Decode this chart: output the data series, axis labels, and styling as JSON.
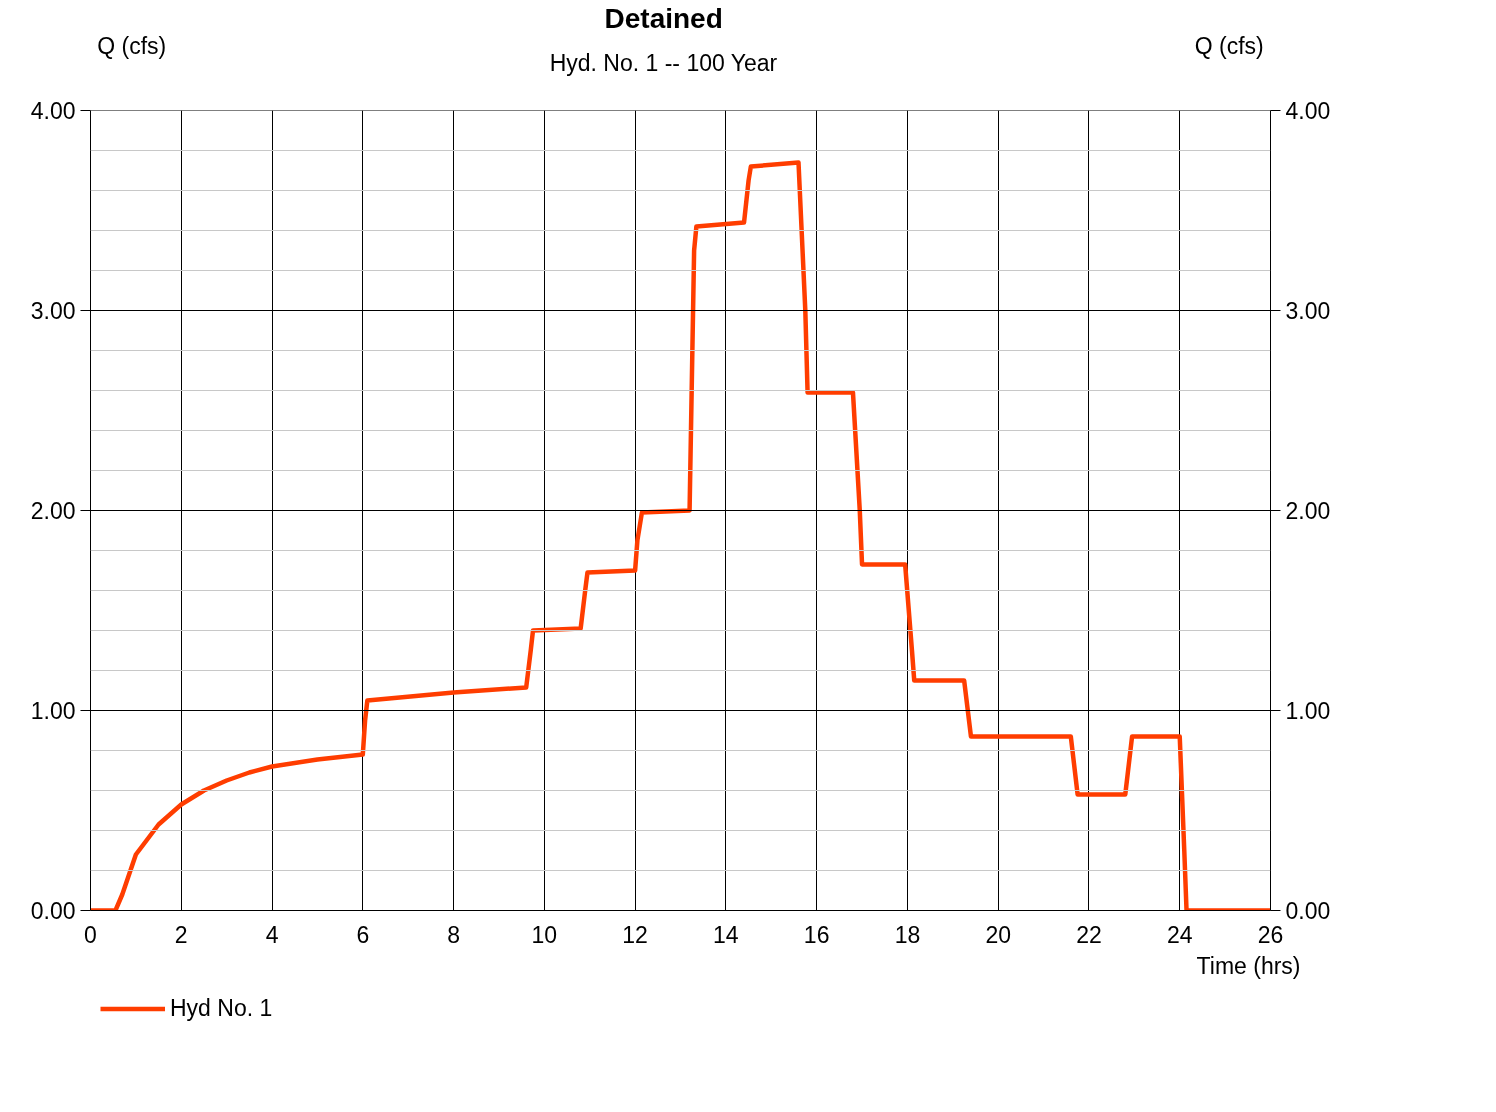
{
  "chart_data": {
    "type": "line",
    "title": "Detained",
    "subtitle": "Hyd. No. 1 -- 100 Year",
    "xlabel": "Time (hrs)",
    "ylabel": "Q (cfs)",
    "y2label": "Q (cfs)",
    "xlim": [
      0,
      26
    ],
    "ylim": [
      0,
      4
    ],
    "y2lim": [
      0,
      4
    ],
    "xticks": [
      0,
      2,
      4,
      6,
      8,
      10,
      12,
      14,
      16,
      18,
      20,
      22,
      24,
      26
    ],
    "yticks": [
      {
        "value": 0,
        "label": "0.00"
      },
      {
        "value": 0.2,
        "label": null
      },
      {
        "value": 0.4,
        "label": null
      },
      {
        "value": 0.6,
        "label": null
      },
      {
        "value": 0.8,
        "label": null
      },
      {
        "value": 1,
        "label": "1.00"
      },
      {
        "value": 1.2,
        "label": null
      },
      {
        "value": 1.4,
        "label": null
      },
      {
        "value": 1.6,
        "label": null
      },
      {
        "value": 1.8,
        "label": null
      },
      {
        "value": 2,
        "label": "2.00"
      },
      {
        "value": 2.2,
        "label": null
      },
      {
        "value": 2.4,
        "label": null
      },
      {
        "value": 2.6,
        "label": null
      },
      {
        "value": 2.8,
        "label": null
      },
      {
        "value": 3,
        "label": "3.00"
      },
      {
        "value": 3.2,
        "label": null
      },
      {
        "value": 3.4,
        "label": null
      },
      {
        "value": 3.6,
        "label": null
      },
      {
        "value": 3.8,
        "label": null
      },
      {
        "value": 4,
        "label": "4.00"
      }
    ],
    "y2ticks": [
      {
        "value": 0,
        "label": "0.00"
      },
      {
        "value": 1,
        "label": "1.00"
      },
      {
        "value": 2,
        "label": "2.00"
      },
      {
        "value": 3,
        "label": "3.00"
      },
      {
        "value": 4,
        "label": "4.00"
      }
    ],
    "grid": true,
    "legend": "bottom left",
    "line_style": "solid",
    "series": [
      {
        "name": "Hyd No. 1",
        "color": "#ff3d00",
        "x": [
          0,
          0.55,
          0.7,
          1,
          1.5,
          2,
          2.5,
          3,
          3.5,
          4,
          5,
          6,
          6.05,
          6.1,
          8,
          9.6,
          9.7,
          9.75,
          10.8,
          10.9,
          10.95,
          12,
          12.05,
          12.15,
          13.2,
          13.3,
          13.35,
          14.4,
          14.5,
          14.55,
          15.6,
          15.75,
          15.8,
          16.8,
          16.95,
          17.0,
          17.95,
          18.1,
          18.15,
          19.25,
          19.4,
          21.6,
          21.75,
          22.8,
          22.95,
          24.0,
          24.1,
          24.15,
          26
        ],
        "values": [
          0,
          0,
          0.08,
          0.28,
          0.43,
          0.53,
          0.6,
          0.65,
          0.69,
          0.72,
          0.755,
          0.78,
          0.95,
          1.05,
          1.09,
          1.115,
          1.3,
          1.4,
          1.41,
          1.6,
          1.69,
          1.7,
          1.85,
          1.99,
          2.0,
          3.3,
          3.42,
          3.44,
          3.65,
          3.72,
          3.74,
          3.0,
          2.59,
          2.59,
          2.0,
          1.73,
          1.73,
          1.3,
          1.15,
          1.15,
          0.87,
          0.87,
          0.58,
          0.58,
          0.87,
          0.87,
          0.3,
          0,
          0
        ]
      }
    ]
  }
}
